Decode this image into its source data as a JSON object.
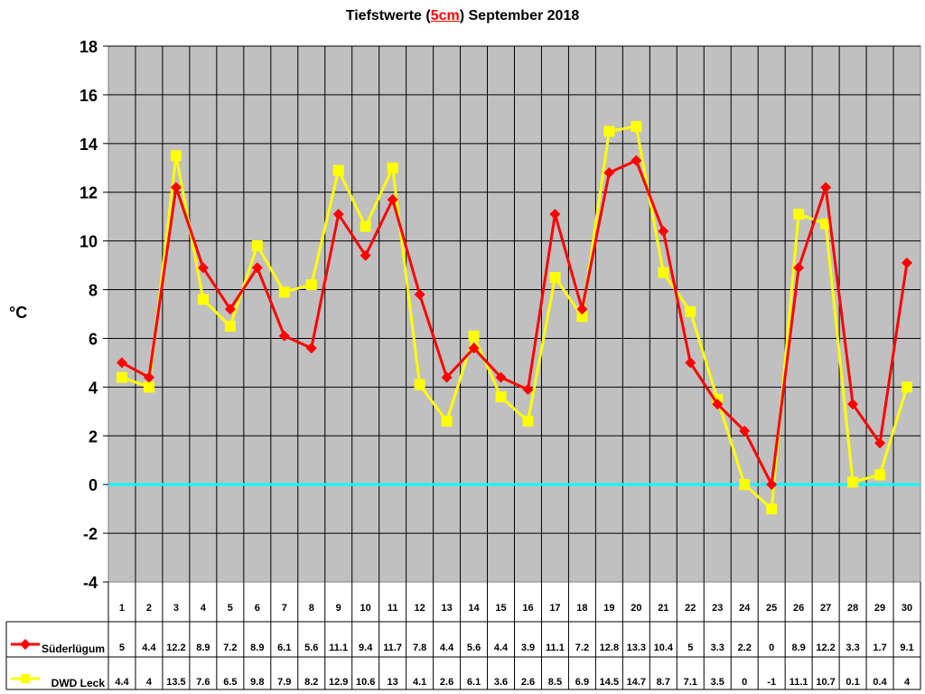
{
  "title": {
    "pre": "Tiefstwerte (",
    "highlight": "5cm",
    "post": ") September 2018"
  },
  "colors": {
    "plot_bg": "#c0c0c0",
    "suederluegum": "#ff0000",
    "dwd_leck": "#ffff00",
    "zero_line": "#00ffff",
    "grid": "#000000"
  },
  "chart_data": {
    "type": "line",
    "title": "Tiefstwerte (5cm) September 2018",
    "xlabel": "",
    "ylabel": "°C",
    "ylim": [
      -4,
      18
    ],
    "yticks": [
      18,
      16,
      14,
      12,
      10,
      8,
      6,
      4,
      2,
      0,
      -2,
      -4
    ],
    "grid": true,
    "legend_position": "data-table-left",
    "categories": [
      1,
      2,
      3,
      4,
      5,
      6,
      7,
      8,
      9,
      10,
      11,
      12,
      13,
      14,
      15,
      16,
      17,
      18,
      19,
      20,
      21,
      22,
      23,
      24,
      25,
      26,
      27,
      28,
      29,
      30
    ],
    "series": [
      {
        "name": "Süderlügum",
        "color": "#ff0000",
        "marker": "diamond",
        "values": [
          5,
          4.4,
          12.2,
          8.9,
          7.2,
          8.9,
          6.1,
          5.6,
          11.1,
          9.4,
          11.7,
          7.8,
          4.4,
          5.6,
          4.4,
          3.9,
          11.1,
          7.2,
          12.8,
          13.3,
          10.4,
          5,
          3.3,
          2.2,
          0,
          8.9,
          12.2,
          3.3,
          1.7,
          9.1
        ]
      },
      {
        "name": "DWD Leck",
        "color": "#ffff00",
        "marker": "square",
        "values": [
          4.4,
          4,
          13.5,
          7.6,
          6.5,
          9.8,
          7.9,
          8.2,
          12.9,
          10.6,
          13,
          4.1,
          2.6,
          6.1,
          3.6,
          2.6,
          8.5,
          6.9,
          14.5,
          14.7,
          8.7,
          7.1,
          3.5,
          0,
          -1,
          11.1,
          10.7,
          0.1,
          0.4,
          4
        ]
      }
    ]
  }
}
